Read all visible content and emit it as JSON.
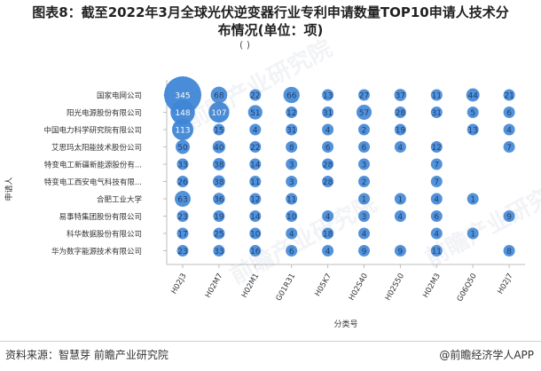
{
  "title_line1": "图表8：截至2022年3月全球光伏逆变器行业专利申请数量TOP10申请人技术分",
  "title_line2": "布情况(单位：项)",
  "subtitle_cut": "(  )",
  "source": "资料来源：智慧芽 前瞻产业研究院",
  "brand": "@前瞻经济学人APP",
  "watermark_text": "前瞻产业研究院",
  "colors": {
    "bubble": "#3f86d6",
    "bubble_text": "#1f3f70",
    "axis": "#bdbdbd",
    "label": "#333333"
  },
  "chart_data": {
    "type": "scatter",
    "xlabel": "分类号",
    "ylabel": "申请人",
    "categories_x": [
      "H02J3",
      "H02M7",
      "H02M1",
      "G01R31",
      "H05K7",
      "H02S40",
      "H02S50",
      "H02M3",
      "G06Q50",
      "H02J7"
    ],
    "categories_y": [
      "国家电网公司",
      "阳光电源股份有限公司",
      "中国电力科学研究院有限公司",
      "艾思玛太阳能技术股份公司",
      "特变电工新疆新能源股份有...",
      "特变电工西安电气科技有限...",
      "合肥工业大学",
      "易事特集团股份有限公司",
      "科华数据股份有限公司",
      "华为数字能源技术有限公司"
    ],
    "values": [
      [
        345,
        68,
        22,
        66,
        13,
        27,
        37,
        11,
        44,
        21
      ],
      [
        148,
        107,
        51,
        12,
        31,
        57,
        28,
        31,
        5,
        6
      ],
      [
        113,
        15,
        4,
        31,
        4,
        2,
        19,
        null,
        13,
        4
      ],
      [
        50,
        40,
        22,
        8,
        6,
        6,
        4,
        12,
        null,
        7
      ],
      [
        33,
        38,
        14,
        3,
        28,
        3,
        null,
        7,
        null,
        null
      ],
      [
        26,
        38,
        11,
        3,
        28,
        2,
        null,
        7,
        null,
        null
      ],
      [
        63,
        36,
        12,
        11,
        null,
        1,
        1,
        4,
        1,
        null
      ],
      [
        23,
        19,
        14,
        10,
        4,
        3,
        4,
        6,
        null,
        9
      ],
      [
        17,
        25,
        10,
        4,
        18,
        4,
        null,
        4,
        1,
        null
      ],
      [
        23,
        33,
        16,
        6,
        4,
        9,
        9,
        11,
        null,
        8
      ]
    ]
  }
}
